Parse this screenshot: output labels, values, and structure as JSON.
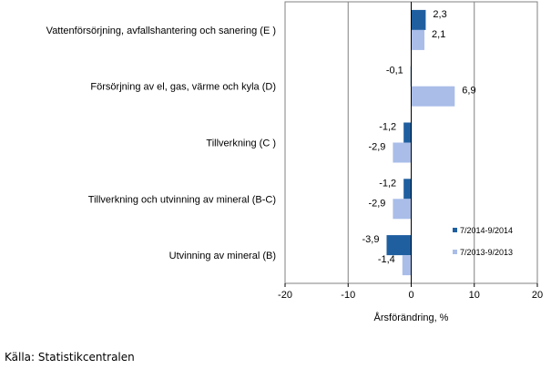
{
  "chart_data": {
    "type": "bar",
    "orientation": "horizontal",
    "categories": [
      "Vattenförsörjning, avfallshantering och sanering (E )",
      "Försörjning av el, gas, värme och kyla (D)",
      "Tillverkning (C )",
      "Tillverkning och utvinning av mineral (B-C)",
      "Utvinning av mineral  (B)"
    ],
    "series": [
      {
        "name": "7/2014-9/2014",
        "color": "#1f5fa0",
        "values": [
          2.3,
          -0.1,
          -1.2,
          -1.2,
          -3.9
        ],
        "labels": [
          "2,3",
          "-0,1",
          "-1,2",
          "-1,2",
          "-3,9"
        ]
      },
      {
        "name": "7/2013-9/2013",
        "color": "#a9bde8",
        "values": [
          2.1,
          6.9,
          -2.9,
          -2.9,
          -1.4
        ],
        "labels": [
          "2,1",
          "6,9",
          "-2,9",
          "-2,9",
          "-1,4"
        ]
      }
    ],
    "xlabel": "Årsförändring, %",
    "xlim": [
      -20,
      20
    ],
    "xticks": [
      -20,
      -10,
      0,
      10,
      20
    ],
    "xtick_labels": [
      "-20",
      "-10",
      "0",
      "10",
      "20"
    ],
    "grid": "vertical",
    "legend_position": "bottom-right"
  },
  "source": "Källa: Statistikcentralen"
}
